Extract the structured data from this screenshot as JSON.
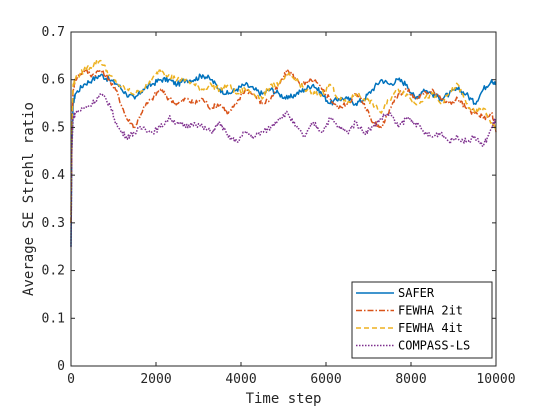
{
  "chart_data": {
    "type": "line",
    "title": "",
    "xlabel": "Time step",
    "ylabel": "Average SE Strehl ratio",
    "xlim": [
      0,
      10000
    ],
    "ylim": [
      0,
      0.7
    ],
    "xticks": [
      0,
      2000,
      4000,
      6000,
      8000,
      10000
    ],
    "yticks": [
      0,
      0.1,
      0.2,
      0.3,
      0.4,
      0.5,
      0.6,
      0.7
    ],
    "xtick_labels": [
      "0",
      "2000",
      "4000",
      "6000",
      "8000",
      "10000"
    ],
    "ytick_labels": [
      "0",
      "0.1",
      "0.2",
      "0.3",
      "0.4",
      "0.5",
      "0.6",
      "0.7"
    ],
    "grid": false,
    "legend_position": "bottom-right",
    "series": [
      {
        "name": "SAFER",
        "color": "#0072BD",
        "style": "solid",
        "start": [
          [
            0,
            0.25
          ],
          [
            20,
            0.45
          ],
          [
            50,
            0.55
          ]
        ],
        "x": [
          100,
          300,
          500,
          700,
          900,
          1100,
          1300,
          1500,
          1700,
          1900,
          2100,
          2300,
          2500,
          2700,
          2900,
          3100,
          3300,
          3500,
          3700,
          3900,
          4100,
          4300,
          4500,
          4700,
          4900,
          5100,
          5300,
          5500,
          5700,
          5900,
          6100,
          6300,
          6500,
          6700,
          6900,
          7100,
          7300,
          7500,
          7700,
          7900,
          8100,
          8300,
          8500,
          8700,
          8900,
          9100,
          9300,
          9500,
          9700,
          9900,
          10000
        ],
        "y": [
          0.57,
          0.59,
          0.6,
          0.61,
          0.6,
          0.59,
          0.57,
          0.56,
          0.58,
          0.59,
          0.6,
          0.6,
          0.59,
          0.6,
          0.6,
          0.61,
          0.6,
          0.58,
          0.57,
          0.58,
          0.59,
          0.58,
          0.57,
          0.58,
          0.57,
          0.56,
          0.57,
          0.58,
          0.59,
          0.57,
          0.55,
          0.56,
          0.56,
          0.55,
          0.56,
          0.58,
          0.6,
          0.59,
          0.6,
          0.59,
          0.56,
          0.58,
          0.57,
          0.56,
          0.57,
          0.58,
          0.57,
          0.55,
          0.58,
          0.6,
          0.59
        ]
      },
      {
        "name": "FEWHA 2it",
        "color": "#D95319",
        "style": "dashdot",
        "start": [
          [
            0,
            0.3
          ],
          [
            20,
            0.5
          ],
          [
            50,
            0.58
          ]
        ],
        "x": [
          100,
          300,
          500,
          700,
          900,
          1100,
          1300,
          1500,
          1700,
          1900,
          2100,
          2300,
          2500,
          2700,
          2900,
          3100,
          3300,
          3500,
          3700,
          3900,
          4100,
          4300,
          4500,
          4700,
          4900,
          5100,
          5300,
          5500,
          5700,
          5900,
          6100,
          6300,
          6500,
          6700,
          6900,
          7100,
          7300,
          7500,
          7700,
          7900,
          8100,
          8300,
          8500,
          8700,
          8900,
          9100,
          9300,
          9500,
          9700,
          9900,
          10000
        ],
        "y": [
          0.6,
          0.62,
          0.61,
          0.62,
          0.6,
          0.57,
          0.52,
          0.5,
          0.54,
          0.56,
          0.58,
          0.56,
          0.55,
          0.56,
          0.55,
          0.56,
          0.54,
          0.55,
          0.53,
          0.55,
          0.58,
          0.57,
          0.55,
          0.56,
          0.59,
          0.62,
          0.6,
          0.59,
          0.6,
          0.58,
          0.56,
          0.54,
          0.55,
          0.57,
          0.55,
          0.51,
          0.5,
          0.54,
          0.57,
          0.58,
          0.56,
          0.57,
          0.58,
          0.56,
          0.55,
          0.56,
          0.54,
          0.53,
          0.52,
          0.53,
          0.49
        ]
      },
      {
        "name": "FEWHA 4it",
        "color": "#EDB120",
        "style": "dashed",
        "start": [
          [
            0,
            0.3
          ],
          [
            20,
            0.5
          ],
          [
            50,
            0.59
          ]
        ],
        "x": [
          100,
          300,
          500,
          700,
          900,
          1100,
          1300,
          1500,
          1700,
          1900,
          2100,
          2300,
          2500,
          2700,
          2900,
          3100,
          3300,
          3500,
          3700,
          3900,
          4100,
          4300,
          4500,
          4700,
          4900,
          5100,
          5300,
          5500,
          5700,
          5900,
          6100,
          6300,
          6500,
          6700,
          6900,
          7100,
          7300,
          7500,
          7700,
          7900,
          8100,
          8300,
          8500,
          8700,
          8900,
          9100,
          9300,
          9500,
          9700,
          9900,
          10000
        ],
        "y": [
          0.6,
          0.62,
          0.63,
          0.64,
          0.61,
          0.59,
          0.58,
          0.57,
          0.58,
          0.6,
          0.62,
          0.61,
          0.6,
          0.6,
          0.59,
          0.58,
          0.59,
          0.58,
          0.59,
          0.57,
          0.58,
          0.57,
          0.56,
          0.59,
          0.59,
          0.61,
          0.6,
          0.58,
          0.57,
          0.57,
          0.59,
          0.56,
          0.55,
          0.57,
          0.56,
          0.55,
          0.53,
          0.56,
          0.58,
          0.57,
          0.55,
          0.56,
          0.57,
          0.55,
          0.57,
          0.59,
          0.55,
          0.53,
          0.54,
          0.51,
          0.5
        ]
      },
      {
        "name": "COMPASS-LS",
        "color": "#7E2F8E",
        "style": "dotted",
        "start": [
          [
            0,
            0.25
          ],
          [
            20,
            0.45
          ],
          [
            50,
            0.52
          ]
        ],
        "x": [
          100,
          300,
          500,
          700,
          900,
          1100,
          1300,
          1500,
          1700,
          1900,
          2100,
          2300,
          2500,
          2700,
          2900,
          3100,
          3300,
          3500,
          3700,
          3900,
          4100,
          4300,
          4500,
          4700,
          4900,
          5100,
          5300,
          5500,
          5700,
          5900,
          6100,
          6300,
          6500,
          6700,
          6900,
          7100,
          7300,
          7500,
          7700,
          7900,
          8100,
          8300,
          8500,
          8700,
          8900,
          9100,
          9300,
          9500,
          9700,
          9900,
          10000
        ],
        "y": [
          0.53,
          0.54,
          0.55,
          0.57,
          0.55,
          0.5,
          0.48,
          0.49,
          0.5,
          0.49,
          0.5,
          0.52,
          0.51,
          0.5,
          0.51,
          0.5,
          0.49,
          0.51,
          0.48,
          0.47,
          0.49,
          0.48,
          0.49,
          0.5,
          0.52,
          0.53,
          0.5,
          0.48,
          0.51,
          0.49,
          0.52,
          0.5,
          0.49,
          0.51,
          0.49,
          0.5,
          0.52,
          0.53,
          0.5,
          0.52,
          0.51,
          0.49,
          0.48,
          0.49,
          0.47,
          0.48,
          0.47,
          0.48,
          0.46,
          0.5,
          0.52
        ]
      }
    ]
  }
}
